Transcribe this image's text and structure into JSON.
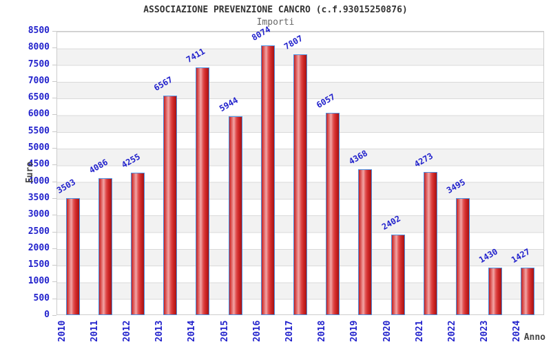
{
  "header": {
    "title": "ASSOCIAZIONE PREVENZIONE CANCRO (c.f.93015250876)",
    "subtitle": "Importi"
  },
  "chart_data": {
    "type": "bar",
    "title": "ASSOCIAZIONE PREVENZIONE CANCRO (c.f.93015250876)",
    "subtitle": "Importi",
    "xlabel": "Anno",
    "ylabel": "Euro",
    "categories": [
      "2010",
      "2011",
      "2012",
      "2013",
      "2014",
      "2015",
      "2016",
      "2017",
      "2018",
      "2019",
      "2020",
      "2021",
      "2022",
      "2023",
      "2024"
    ],
    "values": [
      3503,
      4086,
      4255,
      6567,
      7411,
      5944,
      8074,
      7807,
      6057,
      4368,
      2402,
      4273,
      3495,
      1430,
      1427
    ],
    "ylim": [
      0,
      8500
    ],
    "ytick_step": 500,
    "yticks": [
      0,
      500,
      1000,
      1500,
      2000,
      2500,
      3000,
      3500,
      4000,
      4500,
      5000,
      5500,
      6000,
      6500,
      7000,
      7500,
      8000,
      8500
    ],
    "grid": "horizontal-stripes",
    "legend": "none",
    "value_labels_shown": true,
    "colors": {
      "bar_fill_main": "#d93434",
      "bar_fill_highlight": "#f2a6a6",
      "bar_fill_dark": "#a81212",
      "bar_border": "#4a90e2",
      "tick_label": "#2222cc",
      "value_label": "#2222cc",
      "axis_title": "#444444",
      "title": "#333333",
      "subtitle": "#666666",
      "stripe_band": "#f2f2f2",
      "gridline": "#d9d9d9",
      "plot_border": "#cccccc",
      "background": "#ffffff"
    }
  }
}
